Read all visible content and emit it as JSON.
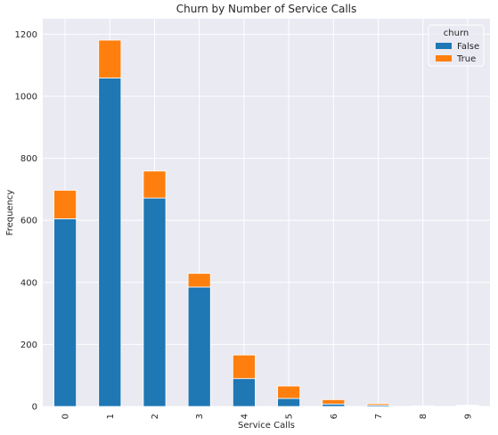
{
  "chart_data": {
    "type": "bar",
    "stacked": true,
    "title": "Churn by Number of Service Calls",
    "xlabel": "Service Calls",
    "ylabel": "Frequency",
    "categories": [
      "0",
      "1",
      "2",
      "3",
      "4",
      "5",
      "6",
      "7",
      "8",
      "9"
    ],
    "series": [
      {
        "name": "False",
        "color": "#1f77b4",
        "values": [
          605,
          1059,
          672,
          385,
          90,
          26,
          8,
          4,
          1,
          2
        ]
      },
      {
        "name": "True",
        "color": "#ff7f0e",
        "values": [
          92,
          122,
          87,
          44,
          76,
          40,
          14,
          5,
          1,
          2
        ]
      }
    ],
    "ylim": [
      0,
      1250
    ],
    "yticks": [
      0,
      200,
      400,
      600,
      800,
      1000,
      1200
    ],
    "grid": true,
    "background": "#eaeaf2",
    "legend": {
      "title": "churn",
      "placement": "top-right"
    }
  }
}
